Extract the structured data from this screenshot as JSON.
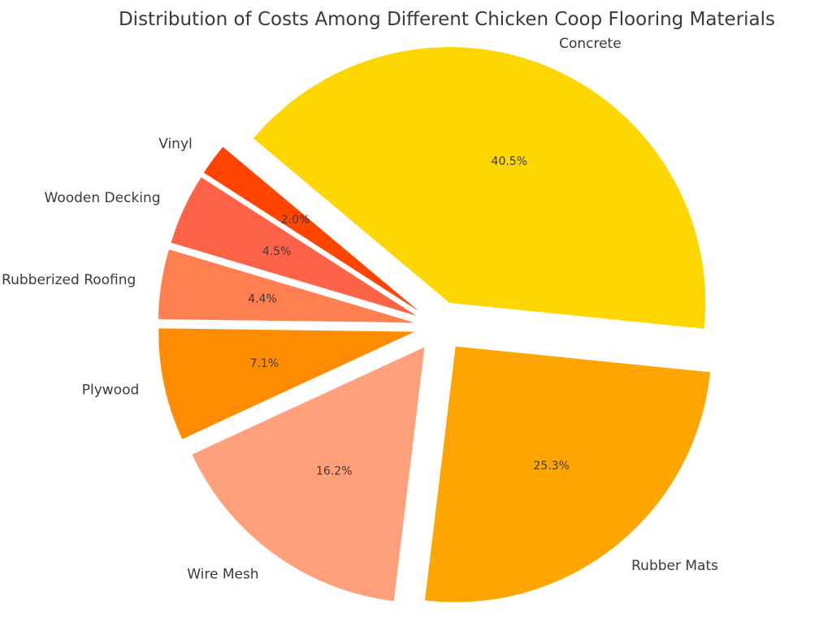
{
  "chart_data": {
    "type": "pie",
    "title": "Distribution of Costs Among Different Chicken Coop Flooring Materials",
    "slices": [
      {
        "label": "Concrete",
        "value": 40.5,
        "pct_label": "40.5%",
        "color": "#FFD700"
      },
      {
        "label": "Rubber Mats",
        "value": 25.3,
        "pct_label": "25.3%",
        "color": "#FFA500"
      },
      {
        "label": "Wire Mesh",
        "value": 16.2,
        "pct_label": "16.2%",
        "color": "#FFA07A"
      },
      {
        "label": "Plywood",
        "value": 7.1,
        "pct_label": "7.1%",
        "color": "#FF8C00"
      },
      {
        "label": "Rubberized Roofing",
        "value": 4.4,
        "pct_label": "4.4%",
        "color": "#FF7F50"
      },
      {
        "label": "Wooden Decking",
        "value": 4.5,
        "pct_label": "4.5%",
        "color": "#FF6347"
      },
      {
        "label": "Vinyl",
        "value": 2.0,
        "pct_label": "2.0%",
        "color": "#FF4500"
      }
    ],
    "start_angle_deg": 140,
    "direction": "clockwise",
    "exploded": true,
    "legend": "none"
  }
}
